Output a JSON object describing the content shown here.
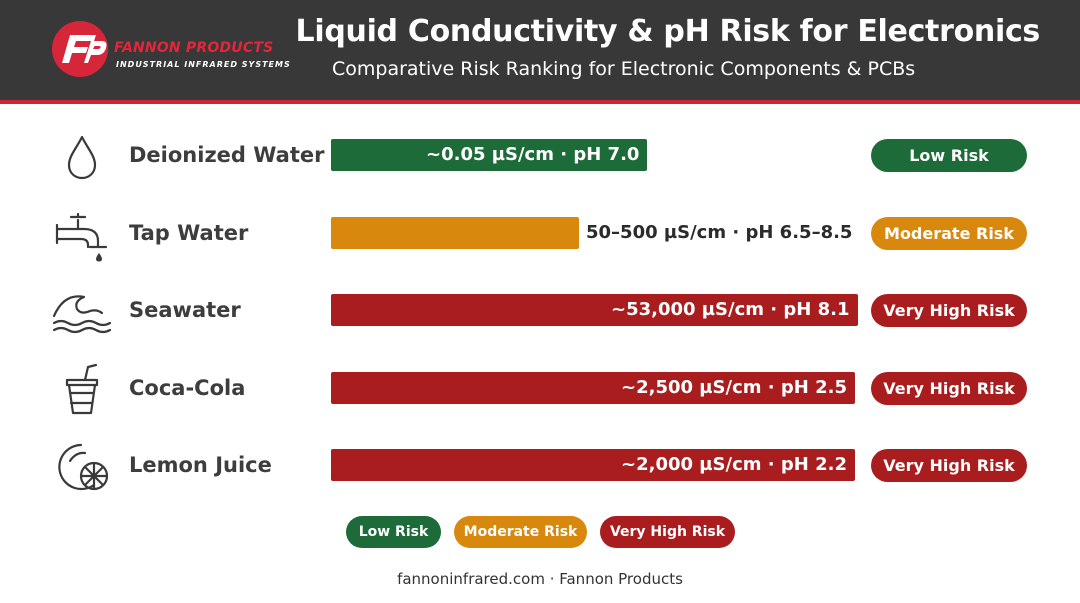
{
  "header": {
    "brand_name": "FANNON PRODUCTS",
    "brand_tagline": "INDUSTRIAL INFRARED SYSTEMS",
    "title": "Liquid Conductivity & pH Risk for Electronics",
    "subtitle": "Comparative Risk Ranking for Electronic Components & PCBs"
  },
  "colors": {
    "header_bg": "#383838",
    "accent_red": "#d0243a",
    "low_risk": "#1d6b38",
    "moderate_risk": "#d8880d",
    "very_high_risk": "#a91d1f"
  },
  "chart_data": {
    "type": "bar",
    "orientation": "horizontal",
    "title": "Liquid Conductivity & pH Risk for Electronics",
    "subtitle": "Comparative Risk Ranking for Electronic Components & PCBs",
    "scale": "relative risk ranking",
    "categories": [
      "Deionized Water",
      "Tap Water",
      "Seawater",
      "Coca-Cola",
      "Lemon Juice"
    ],
    "values": [
      0.6,
      0.47,
      1.0,
      0.995,
      0.995
    ],
    "value_labels": [
      "~0.05 µS/cm · pH 7.0",
      "50–500 µS/cm · pH 6.5–8.5",
      "~53,000 µS/cm · pH 8.1",
      "~2,500 µS/cm · pH 2.5",
      "~2,000 µS/cm · pH 2.2"
    ],
    "risk_levels": [
      "Low Risk",
      "Moderate Risk",
      "Very High Risk",
      "Very High Risk",
      "Very High Risk"
    ],
    "icons": [
      "water-drop-icon",
      "faucet-icon",
      "wave-icon",
      "soda-cup-icon",
      "lemon-slice-icon"
    ],
    "legend": {
      "placement": "bottom-center",
      "entries": [
        "Low Risk",
        "Moderate Risk",
        "Very High Risk"
      ]
    },
    "grid": false
  },
  "footer": {
    "text": "fannoninfrared.com · Fannon Products"
  }
}
